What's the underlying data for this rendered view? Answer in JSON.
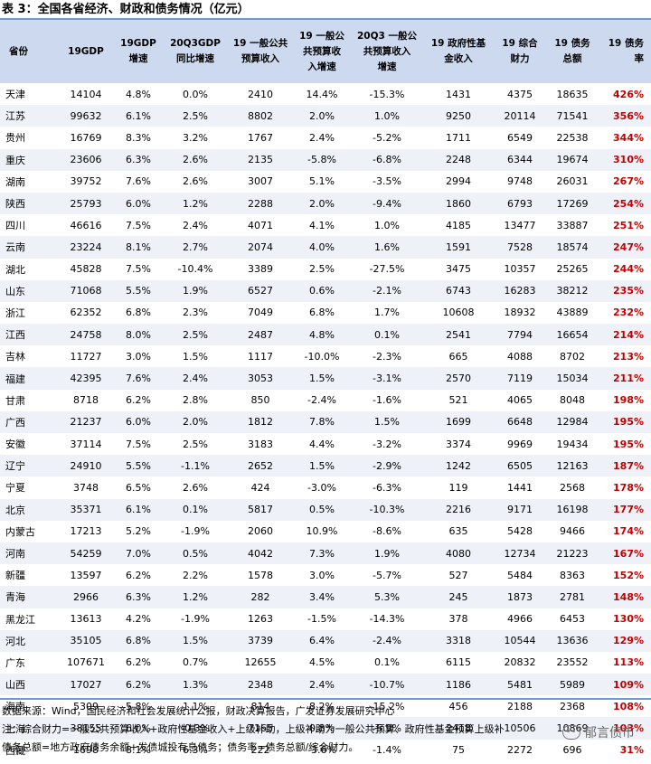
{
  "title": "表 3：全国各省经济、财政和债务情况（亿元）",
  "headers": [
    "省份",
    "19GDP",
    "19GDP\n增速",
    "20Q3GDP\n同比增速",
    "19 一般公共\n预算收入",
    "19 一般公\n共预算收\n入增速",
    "20Q3 一般公\n共预算收入\n增速",
    "19 政府性基\n金收入",
    "19 综合\n财力",
    "19 债务\n总额",
    "19 债务率"
  ],
  "rows": [
    [
      "天津",
      "14104",
      "4.8%",
      "0.0%",
      "2410",
      "14.4%",
      "-15.3%",
      "1431",
      "4375",
      "18635",
      "426%"
    ],
    [
      "江苏",
      "99632",
      "6.1%",
      "2.5%",
      "8802",
      "2.0%",
      "1.0%",
      "9250",
      "20114",
      "71541",
      "356%"
    ],
    [
      "贵州",
      "16769",
      "8.3%",
      "3.2%",
      "1767",
      "2.4%",
      "-5.2%",
      "1711",
      "6549",
      "22538",
      "344%"
    ],
    [
      "重庆",
      "23606",
      "6.3%",
      "2.6%",
      "2135",
      "-5.8%",
      "-6.8%",
      "2248",
      "6344",
      "19674",
      "310%"
    ],
    [
      "湖南",
      "39752",
      "7.6%",
      "2.6%",
      "3007",
      "5.1%",
      "-3.5%",
      "2994",
      "9748",
      "26031",
      "267%"
    ],
    [
      "陕西",
      "25793",
      "6.0%",
      "1.2%",
      "2288",
      "2.0%",
      "-9.4%",
      "1860",
      "6793",
      "17269",
      "254%"
    ],
    [
      "四川",
      "46616",
      "7.5%",
      "2.4%",
      "4071",
      "4.1%",
      "1.0%",
      "4185",
      "13477",
      "33887",
      "251%"
    ],
    [
      "云南",
      "23224",
      "8.1%",
      "2.7%",
      "2074",
      "4.0%",
      "1.6%",
      "1591",
      "7528",
      "18574",
      "247%"
    ],
    [
      "湖北",
      "45828",
      "7.5%",
      "-10.4%",
      "3389",
      "2.5%",
      "-27.5%",
      "3475",
      "10357",
      "25265",
      "244%"
    ],
    [
      "山东",
      "71068",
      "5.5%",
      "1.9%",
      "6527",
      "0.6%",
      "-2.1%",
      "6743",
      "16283",
      "38212",
      "235%"
    ],
    [
      "浙江",
      "62352",
      "6.8%",
      "2.3%",
      "7049",
      "6.8%",
      "1.7%",
      "10608",
      "18932",
      "43889",
      "232%"
    ],
    [
      "江西",
      "24758",
      "8.0%",
      "2.5%",
      "2487",
      "4.8%",
      "0.1%",
      "2541",
      "7794",
      "16654",
      "214%"
    ],
    [
      "吉林",
      "11727",
      "3.0%",
      "1.5%",
      "1117",
      "-10.0%",
      "-2.3%",
      "665",
      "4088",
      "8702",
      "213%"
    ],
    [
      "福建",
      "42395",
      "7.6%",
      "2.4%",
      "3053",
      "1.5%",
      "-3.1%",
      "2570",
      "7119",
      "15034",
      "211%"
    ],
    [
      "甘肃",
      "8718",
      "6.2%",
      "2.8%",
      "850",
      "-2.4%",
      "-1.6%",
      "521",
      "4065",
      "8048",
      "198%"
    ],
    [
      "广西",
      "21237",
      "6.0%",
      "2.0%",
      "1812",
      "7.8%",
      "1.5%",
      "1699",
      "6648",
      "12984",
      "195%"
    ],
    [
      "安徽",
      "37114",
      "7.5%",
      "2.5%",
      "3183",
      "4.4%",
      "-3.2%",
      "3374",
      "9969",
      "19434",
      "195%"
    ],
    [
      "辽宁",
      "24910",
      "5.5%",
      "-1.1%",
      "2652",
      "1.5%",
      "-2.9%",
      "1242",
      "6505",
      "12163",
      "187%"
    ],
    [
      "宁夏",
      "3748",
      "6.5%",
      "2.6%",
      "424",
      "-3.0%",
      "-6.3%",
      "119",
      "1441",
      "2568",
      "178%"
    ],
    [
      "北京",
      "35371",
      "6.1%",
      "0.1%",
      "5817",
      "0.5%",
      "-10.3%",
      "2216",
      "9171",
      "16198",
      "177%"
    ],
    [
      "内蒙古",
      "17213",
      "5.2%",
      "-1.9%",
      "2060",
      "10.9%",
      "-8.6%",
      "635",
      "5428",
      "9466",
      "174%"
    ],
    [
      "河南",
      "54259",
      "7.0%",
      "0.5%",
      "4042",
      "7.3%",
      "1.9%",
      "4080",
      "12734",
      "21223",
      "167%"
    ],
    [
      "新疆",
      "13597",
      "6.2%",
      "2.2%",
      "1578",
      "3.0%",
      "-5.7%",
      "527",
      "5484",
      "8363",
      "152%"
    ],
    [
      "青海",
      "2966",
      "6.3%",
      "1.2%",
      "282",
      "3.4%",
      "5.3%",
      "245",
      "1873",
      "2781",
      "148%"
    ],
    [
      "黑龙江",
      "13613",
      "4.2%",
      "-1.9%",
      "1263",
      "-1.5%",
      "-14.3%",
      "378",
      "4966",
      "6453",
      "130%"
    ],
    [
      "河北",
      "35105",
      "6.8%",
      "1.5%",
      "3739",
      "6.4%",
      "-2.4%",
      "3318",
      "10544",
      "13636",
      "129%"
    ],
    [
      "广东",
      "107671",
      "6.2%",
      "0.7%",
      "12655",
      "4.5%",
      "0.1%",
      "6115",
      "20832",
      "23552",
      "113%"
    ],
    [
      "山西",
      "17027",
      "6.2%",
      "1.3%",
      "2348",
      "2.4%",
      "-10.7%",
      "1186",
      "5481",
      "5989",
      "109%"
    ],
    [
      "海南",
      "5309",
      "5.8%",
      "1.1%",
      "814",
      "8.2%",
      "-15.2%",
      "456",
      "2188",
      "2368",
      "108%"
    ],
    [
      "上海",
      "38155",
      "6.0%",
      "-0.3%",
      "7165",
      "0.8%",
      "-5.9%",
      "2418",
      "10506",
      "10869",
      "103%"
    ],
    [
      "西藏",
      "1698",
      "8.1%",
      "6.3%",
      "222",
      "-3.6%",
      "-1.4%",
      "75",
      "2272",
      "696",
      "31%"
    ]
  ],
  "notes": [
    "数据来源：Wind，国民经济和社会发展统计公报，财政决算报告，广发证券发展研究中心",
    "注：综合财力=一般公共预算收入+政府性基金收入+上级补助，上级补助为一般公共预算、政府性基金预算上级补",
    "债务总额=地方政府债务余额+发债城投有息债务；债务率=债务总额/综合财力。"
  ],
  "watermark": "郁言债市",
  "colors": {
    "header_bg": "#cdd9ee",
    "stripe": "#eef2f8",
    "rule": "#6e9ad2",
    "rate": "#c00000"
  }
}
